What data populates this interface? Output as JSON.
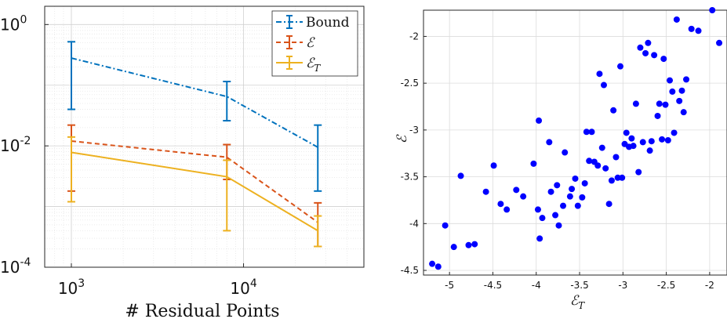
{
  "chart_data": [
    {
      "type": "line",
      "xlabel": "# Residual Points",
      "ylabel": "",
      "xscale": "log",
      "yscale": "log",
      "xlim": [
        700,
        50000
      ],
      "ylim": [
        0.0001,
        2
      ],
      "grid": true,
      "legend_position": "top-right",
      "x_ticks": [
        {
          "value": 1000,
          "base": "10",
          "exp": "3"
        },
        {
          "value": 10000,
          "base": "10",
          "exp": "4"
        }
      ],
      "y_ticks": [
        {
          "value": 1,
          "base": "10",
          "exp": "0"
        },
        {
          "value": 0.01,
          "base": "10",
          "exp": "-2"
        },
        {
          "value": 0.0001,
          "base": "10",
          "exp": "-4"
        }
      ],
      "x": [
        1000,
        8000,
        27000
      ],
      "series": [
        {
          "name": "Bound",
          "legend_main": "Bound",
          "legend_sub": "",
          "color": "#0072BD",
          "dash": "7,3,2,3",
          "values": [
            0.28,
            0.065,
            0.0095
          ],
          "err_low": [
            0.04,
            0.026,
            0.0018
          ],
          "err_high": [
            0.52,
            0.115,
            0.022
          ]
        },
        {
          "name": "E",
          "legend_main": "ℰ",
          "legend_sub": "",
          "color": "#D95319",
          "dash": "6,4",
          "values": [
            0.012,
            0.0065,
            0.00055
          ],
          "err_low": [
            0.0018,
            0.0028,
            0.00022
          ],
          "err_high": [
            0.022,
            0.0105,
            0.00115
          ]
        },
        {
          "name": "E_T",
          "legend_main": "ℰ",
          "legend_sub": "T",
          "color": "#EDB120",
          "dash": "",
          "values": [
            0.0078,
            0.0031,
            0.0004
          ],
          "err_low": [
            0.0012,
            0.0004,
            0.00022
          ],
          "err_high": [
            0.014,
            0.0058,
            0.0007
          ]
        }
      ]
    },
    {
      "type": "scatter",
      "xlabel_main": "ℰ",
      "xlabel_sub": "T",
      "ylabel": "ℰ",
      "xlim": [
        -5.3,
        -1.8
      ],
      "ylim": [
        -4.55,
        -1.72
      ],
      "grid": true,
      "x_ticks": [
        "-5",
        "-4.5",
        "-4",
        "-3.5",
        "-3",
        "-2.5",
        "-2"
      ],
      "y_ticks": [
        "-2",
        "-2.5",
        "-3",
        "-3.5",
        "-4",
        "-4.5"
      ],
      "color": "#0000FF",
      "points": [
        [
          -5.27,
          -4.56
        ],
        [
          -5.2,
          -4.43
        ],
        [
          -5.13,
          -4.46
        ],
        [
          -5.05,
          -4.02
        ],
        [
          -4.95,
          -4.25
        ],
        [
          -4.87,
          -3.49
        ],
        [
          -4.78,
          -4.23
        ],
        [
          -4.71,
          -4.22
        ],
        [
          -4.58,
          -3.66
        ],
        [
          -4.49,
          -3.38
        ],
        [
          -4.41,
          -3.79
        ],
        [
          -4.34,
          -3.85
        ],
        [
          -4.23,
          -3.64
        ],
        [
          -4.15,
          -3.71
        ],
        [
          -4.03,
          -3.36
        ],
        [
          -3.98,
          -3.85
        ],
        [
          -3.96,
          -4.16
        ],
        [
          -3.93,
          -3.94
        ],
        [
          -3.97,
          -2.9
        ],
        [
          -3.85,
          -3.13
        ],
        [
          -3.83,
          -3.66
        ],
        [
          -3.78,
          -3.91
        ],
        [
          -3.76,
          -3.59
        ],
        [
          -3.74,
          -4.02
        ],
        [
          -3.69,
          -3.81
        ],
        [
          -3.67,
          -3.24
        ],
        [
          -3.61,
          -3.71
        ],
        [
          -3.59,
          -3.63
        ],
        [
          -3.55,
          -3.52
        ],
        [
          -3.52,
          -3.81
        ],
        [
          -3.47,
          -3.72
        ],
        [
          -3.44,
          -3.57
        ],
        [
          -3.42,
          -3.02
        ],
        [
          -3.39,
          -3.33
        ],
        [
          -3.36,
          -3.02
        ],
        [
          -3.33,
          -3.34
        ],
        [
          -3.29,
          -3.38
        ],
        [
          -3.27,
          -2.4
        ],
        [
          -3.24,
          -3.19
        ],
        [
          -3.22,
          -2.52
        ],
        [
          -3.2,
          -3.41
        ],
        [
          -3.16,
          -3.79
        ],
        [
          -3.13,
          -3.54
        ],
        [
          -3.11,
          -2.79
        ],
        [
          -3.08,
          -3.29
        ],
        [
          -3.06,
          -3.51
        ],
        [
          -3.03,
          -2.32
        ],
        [
          -3.01,
          -3.51
        ],
        [
          -2.98,
          -3.15
        ],
        [
          -2.96,
          -3.03
        ],
        [
          -2.93,
          -3.18
        ],
        [
          -2.9,
          -3.09
        ],
        [
          -2.88,
          -3.17
        ],
        [
          -2.85,
          -2.72
        ],
        [
          -2.82,
          -3.45
        ],
        [
          -2.8,
          -2.12
        ],
        [
          -2.77,
          -3.13
        ],
        [
          -2.74,
          -2.18
        ],
        [
          -2.71,
          -2.07
        ],
        [
          -2.69,
          -3.22
        ],
        [
          -2.67,
          -3.12
        ],
        [
          -2.64,
          -2.2
        ],
        [
          -2.6,
          -2.85
        ],
        [
          -2.58,
          -2.72
        ],
        [
          -2.55,
          -3.1
        ],
        [
          -2.53,
          -2.24
        ],
        [
          -2.51,
          -2.73
        ],
        [
          -2.48,
          -3.11
        ],
        [
          -2.46,
          -2.47
        ],
        [
          -2.43,
          -2.59
        ],
        [
          -2.41,
          -3.03
        ],
        [
          -2.38,
          -1.82
        ],
        [
          -2.35,
          -2.69
        ],
        [
          -2.32,
          -2.58
        ],
        [
          -2.3,
          -2.81
        ],
        [
          -2.27,
          -2.46
        ],
        [
          -2.21,
          -1.92
        ],
        [
          -2.13,
          -1.94
        ],
        [
          -1.97,
          -1.72
        ],
        [
          -1.89,
          -2.07
        ]
      ]
    }
  ]
}
